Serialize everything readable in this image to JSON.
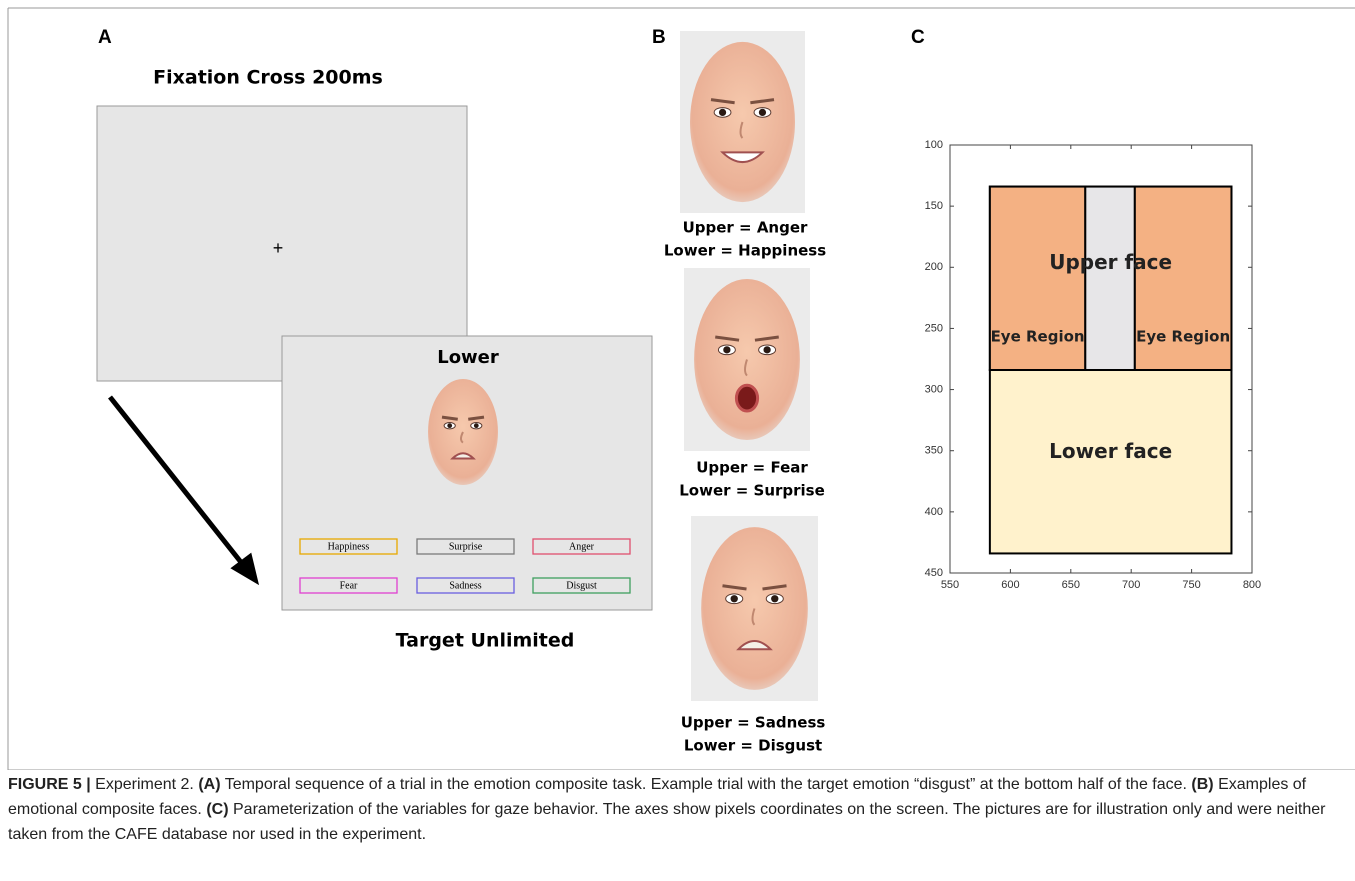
{
  "panel_a": {
    "letter": "A",
    "fixation_title": "Fixation Cross 200ms",
    "fixation_symbol": "+",
    "target_prompt": "Lower",
    "options": [
      {
        "label": "Happiness",
        "color": "#e8a800"
      },
      {
        "label": "Surprise",
        "color": "#7a7a7a"
      },
      {
        "label": "Anger",
        "color": "#e0506e"
      },
      {
        "label": "Fear",
        "color": "#e040d0"
      },
      {
        "label": "Sadness",
        "color": "#6a5ee0"
      },
      {
        "label": "Disgust",
        "color": "#3fa060"
      }
    ],
    "target_title": "Target Unlimited"
  },
  "panel_b": {
    "letter": "B",
    "faces": [
      {
        "upper": "Upper = Anger",
        "lower": "Lower = Happiness"
      },
      {
        "upper": "Upper = Fear",
        "lower": "Lower = Surprise"
      },
      {
        "upper": "Upper = Sadness",
        "lower": "Lower = Disgust"
      }
    ]
  },
  "panel_c": {
    "letter": "C",
    "xlim": [
      550,
      800
    ],
    "ylim": [
      100,
      450
    ],
    "y_inverted": true,
    "xticks": [
      550,
      600,
      650,
      700,
      750,
      800
    ],
    "yticks": [
      100,
      150,
      200,
      250,
      300,
      350,
      400,
      450
    ],
    "regions": [
      {
        "label": "Upper face",
        "x": [
          583,
          783
        ],
        "y": [
          134,
          284
        ]
      },
      {
        "label": "Eye Region",
        "x": [
          583,
          662
        ],
        "y": [
          134,
          284
        ],
        "color": "#f4b183"
      },
      {
        "x": [
          662,
          703
        ],
        "y": [
          134,
          284
        ],
        "color": "#e7e6e8"
      },
      {
        "label": "Eye Region",
        "x": [
          703,
          783
        ],
        "y": [
          134,
          284
        ],
        "color": "#f4b183"
      },
      {
        "label": "Lower face",
        "x": [
          583,
          783
        ],
        "y": [
          284,
          434
        ],
        "color": "#fff2cc"
      }
    ]
  },
  "caption": [
    {
      "text": "FIGURE 5 |",
      "bold": true
    },
    {
      "text": " Experiment 2. "
    },
    {
      "text": "(A)",
      "bold": true
    },
    {
      "text": " Temporal sequence of a trial in the emotion composite task. Example trial with the target emotion “disgust” at the bottom half of the face. "
    },
    {
      "text": "(B)",
      "bold": true
    },
    {
      "text": " Examples of emotional composite faces. "
    },
    {
      "text": "(C)",
      "bold": true
    },
    {
      "text": " Parameterization of the variables for gaze behavior. The axes show pixels coordinates on the screen. The pictures are for illustration only and were neither taken from the CAFE database nor used in the experiment."
    }
  ]
}
